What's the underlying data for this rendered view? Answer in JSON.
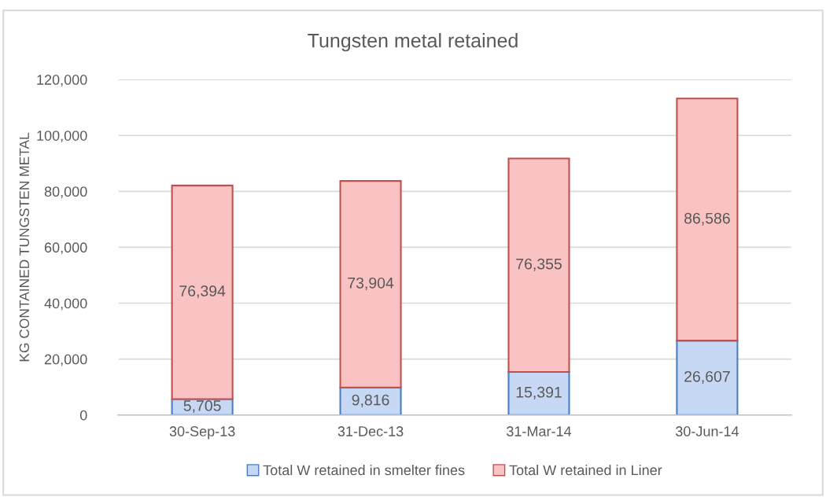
{
  "chart_data": {
    "type": "bar",
    "title": "Tungsten metal retained",
    "ylabel": "KG CONTAINED TUNGSTEN METAL",
    "categories": [
      "30-Sep-13",
      "31-Dec-13",
      "31-Mar-14",
      "30-Jun-14"
    ],
    "stacked": true,
    "series": [
      {
        "name": "Total W retained in smelter fines",
        "color": "#c6d8f3",
        "values": [
          5705,
          9816,
          15391,
          26607
        ],
        "value_labels": [
          "5,705",
          "9,816",
          "15,391",
          "26,607"
        ]
      },
      {
        "name": "Total W retained in Liner",
        "color": "#f9c3c3",
        "values": [
          76394,
          73904,
          76355,
          86586
        ],
        "value_labels": [
          "76,394",
          "73,904",
          "76,355",
          "86,586"
        ]
      }
    ],
    "ylim": [
      0,
      120000
    ],
    "yticks": [
      {
        "value": 0,
        "label": "0"
      },
      {
        "value": 20000,
        "label": "20,000"
      },
      {
        "value": 40000,
        "label": "40,000"
      },
      {
        "value": 60000,
        "label": "60,000"
      },
      {
        "value": 80000,
        "label": "80,000"
      },
      {
        "value": 100000,
        "label": "100,000"
      },
      {
        "value": 120000,
        "label": "120,000"
      }
    ],
    "grid": "y",
    "legend": "bottom"
  }
}
